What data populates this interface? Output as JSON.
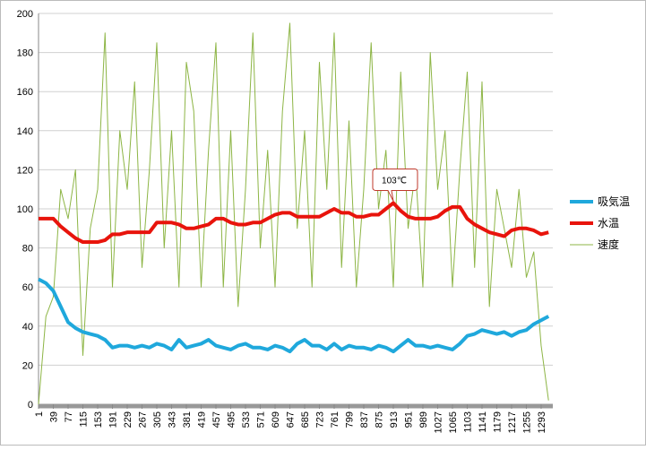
{
  "chart_data": {
    "type": "line",
    "x": [
      1,
      20,
      39,
      58,
      77,
      96,
      115,
      134,
      153,
      172,
      191,
      210,
      229,
      248,
      267,
      286,
      305,
      324,
      343,
      362,
      381,
      400,
      419,
      438,
      457,
      476,
      495,
      514,
      533,
      552,
      571,
      590,
      609,
      628,
      647,
      666,
      685,
      704,
      723,
      742,
      761,
      780,
      799,
      818,
      837,
      856,
      875,
      894,
      913,
      932,
      951,
      970,
      989,
      1008,
      1027,
      1046,
      1065,
      1084,
      1103,
      1122,
      1141,
      1160,
      1179,
      1198,
      1217,
      1236,
      1255,
      1274,
      1293,
      1312
    ],
    "series": [
      {
        "name": "吸気温",
        "color": "#1fa8dc",
        "width": 4,
        "values": [
          64,
          62,
          58,
          50,
          42,
          39,
          37,
          36,
          35,
          33,
          29,
          30,
          30,
          29,
          30,
          29,
          31,
          30,
          28,
          33,
          29,
          30,
          31,
          33,
          30,
          29,
          28,
          30,
          31,
          29,
          29,
          28,
          30,
          29,
          27,
          31,
          33,
          30,
          30,
          28,
          31,
          28,
          30,
          29,
          29,
          28,
          30,
          29,
          27,
          30,
          33,
          30,
          30,
          29,
          30,
          29,
          28,
          31,
          35,
          36,
          38,
          37,
          36,
          37,
          35,
          37,
          38,
          41,
          43,
          45
        ]
      },
      {
        "name": "水温",
        "color": "#e8140c",
        "width": 4,
        "values": [
          95,
          95,
          95,
          91,
          88,
          85,
          83,
          83,
          83,
          84,
          87,
          87,
          88,
          88,
          88,
          88,
          93,
          93,
          93,
          92,
          90,
          90,
          91,
          92,
          95,
          95,
          93,
          92,
          92,
          93,
          93,
          95,
          97,
          98,
          98,
          96,
          96,
          96,
          96,
          98,
          100,
          98,
          98,
          96,
          96,
          97,
          97,
          100,
          103,
          99,
          96,
          95,
          95,
          95,
          96,
          99,
          101,
          101,
          95,
          92,
          90,
          88,
          87,
          86,
          89,
          90,
          90,
          89,
          87,
          88
        ]
      },
      {
        "name": "速度",
        "color": "#8db545",
        "width": 1,
        "values": [
          0,
          45,
          55,
          110,
          95,
          120,
          25,
          90,
          110,
          190,
          60,
          140,
          110,
          165,
          70,
          120,
          185,
          80,
          140,
          60,
          175,
          150,
          60,
          130,
          185,
          60,
          140,
          50,
          110,
          190,
          80,
          130,
          60,
          150,
          195,
          90,
          140,
          60,
          175,
          110,
          190,
          70,
          145,
          60,
          110,
          185,
          100,
          130,
          60,
          170,
          90,
          120,
          60,
          180,
          110,
          140,
          60,
          120,
          170,
          70,
          165,
          50,
          110,
          90,
          70,
          110,
          65,
          78,
          30,
          2
        ]
      }
    ],
    "xlim": [
      1,
      1323
    ],
    "xticks": [
      1,
      39,
      77,
      115,
      153,
      191,
      229,
      267,
      305,
      343,
      381,
      419,
      457,
      495,
      533,
      571,
      609,
      647,
      685,
      723,
      761,
      799,
      837,
      875,
      913,
      951,
      989,
      1027,
      1065,
      1103,
      1141,
      1179,
      1217,
      1255,
      1293
    ],
    "ylim": [
      0,
      200
    ],
    "yticks": [
      0,
      20,
      40,
      60,
      80,
      100,
      120,
      140,
      160,
      180,
      200
    ],
    "grid": true,
    "legend": "right",
    "annotation": {
      "text": "103℃",
      "x": 913,
      "y": 103
    }
  }
}
